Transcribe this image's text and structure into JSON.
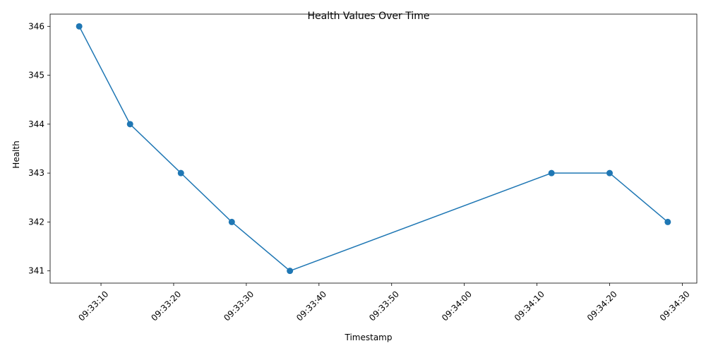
{
  "chart_data": {
    "type": "line",
    "title": "Health Values Over Time",
    "xlabel": "Timestamp",
    "ylabel": "Health",
    "x_unit": "time (HH:MM:SS)",
    "series": [
      {
        "color": "#1f77b4",
        "marker": "circle",
        "points": [
          {
            "x": "09:33:07",
            "y": 346
          },
          {
            "x": "09:33:14",
            "y": 344
          },
          {
            "x": "09:33:21",
            "y": 343
          },
          {
            "x": "09:33:28",
            "y": 342
          },
          {
            "x": "09:33:36",
            "y": 341
          },
          {
            "x": "09:34:12",
            "y": 343
          },
          {
            "x": "09:34:20",
            "y": 343
          },
          {
            "x": "09:34:28",
            "y": 342
          }
        ]
      }
    ],
    "x_ticks": [
      "09:33:10",
      "09:33:20",
      "09:33:30",
      "09:33:40",
      "09:33:50",
      "09:34:00",
      "09:34:10",
      "09:34:20",
      "09:34:30"
    ],
    "y_ticks": [
      341,
      342,
      343,
      344,
      345,
      346
    ],
    "xlim": [
      "09:33:03",
      "09:34:32"
    ],
    "ylim": [
      340.75,
      346.25
    ],
    "grid": false,
    "legend": "none"
  }
}
